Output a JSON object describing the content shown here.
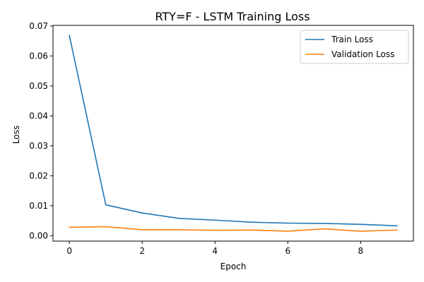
{
  "chart_data": {
    "type": "line",
    "title": "RTY=F - LSTM Training Loss",
    "xlabel": "Epoch",
    "ylabel": "Loss",
    "x": [
      0,
      1,
      2,
      3,
      4,
      5,
      6,
      7,
      8,
      9
    ],
    "xlim": [
      -0.45,
      9.45
    ],
    "ylim": [
      -0.0018,
      0.0702
    ],
    "xticks": [
      0,
      2,
      4,
      6,
      8
    ],
    "yticks": [
      0.0,
      0.01,
      0.02,
      0.03,
      0.04,
      0.05,
      0.06,
      0.07
    ],
    "ytick_labels": [
      "0.00",
      "0.01",
      "0.02",
      "0.03",
      "0.04",
      "0.05",
      "0.06",
      "0.07"
    ],
    "grid": false,
    "legend_position": "upper right",
    "series": [
      {
        "name": "Train Loss",
        "color": "#1f77b4",
        "values": [
          0.0668,
          0.0103,
          0.0076,
          0.0058,
          0.0052,
          0.0045,
          0.0042,
          0.0041,
          0.0038,
          0.0033
        ]
      },
      {
        "name": "Validation Loss",
        "color": "#ff7f0e",
        "values": [
          0.0028,
          0.003,
          0.002,
          0.002,
          0.0018,
          0.0019,
          0.0015,
          0.0023,
          0.0015,
          0.0019
        ]
      }
    ]
  }
}
